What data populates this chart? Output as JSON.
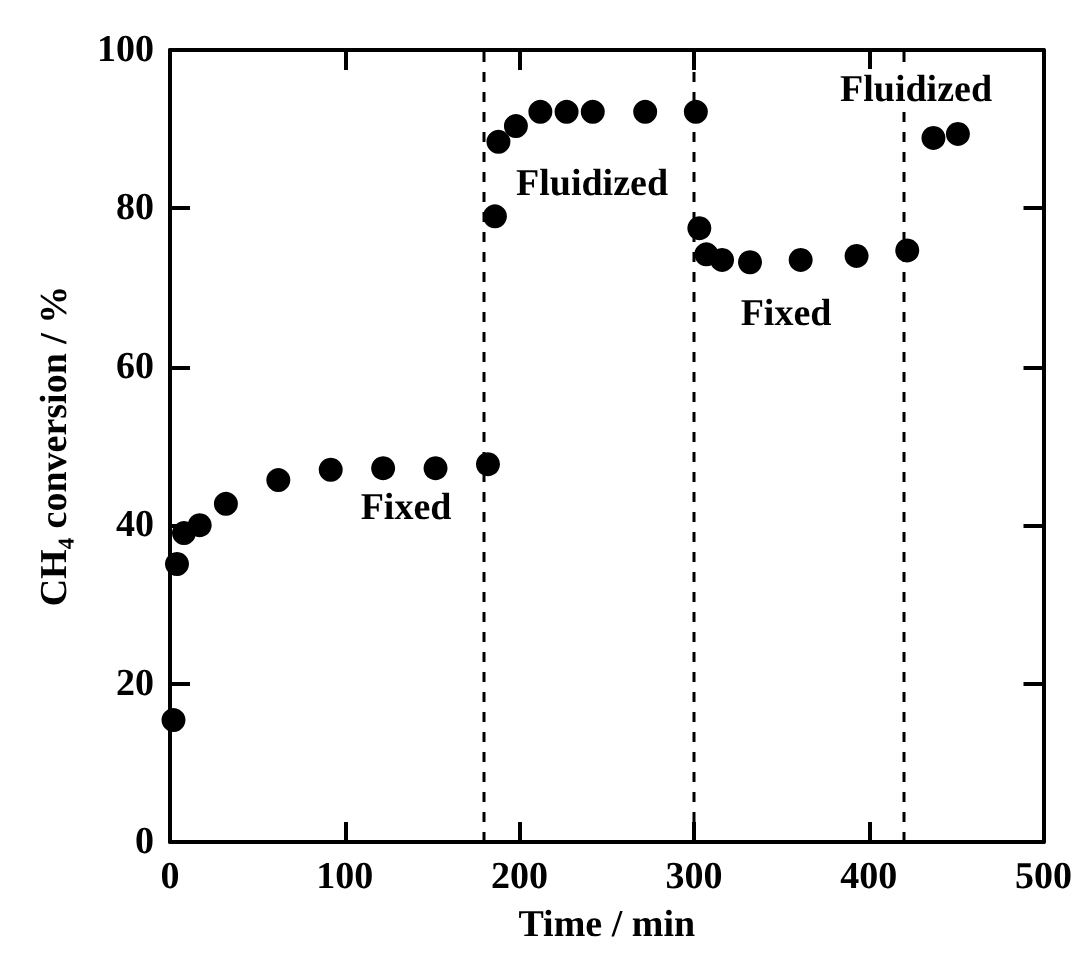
{
  "chart_data": {
    "type": "scatter",
    "xlabel": "Time / min",
    "ylabel": "CH₄ conversion / %",
    "x": [
      2,
      4,
      8,
      17,
      32,
      62,
      92,
      122,
      152,
      182,
      186,
      188,
      198,
      212,
      227,
      242,
      272,
      301,
      303,
      307,
      316,
      332,
      361,
      393,
      422,
      437,
      451
    ],
    "series": [
      {
        "color": "#000000",
        "values": [
          15.4,
          35.1,
          39,
          40,
          42.7,
          45.7,
          47,
          47.2,
          47.2,
          47.7,
          79,
          88.4,
          90.4,
          92.2,
          92.2,
          92.2,
          92.2,
          92.2,
          77.5,
          74.2,
          73.5,
          73.2,
          73.5,
          74,
          74.7,
          88.9,
          89.4
        ]
      }
    ],
    "xlim": [
      0,
      500
    ],
    "xticks": [
      0,
      100,
      200,
      300,
      400,
      500
    ],
    "ylim": [
      0,
      100
    ],
    "yticks": [
      0,
      20,
      40,
      60,
      80,
      100
    ],
    "ref_lines": [
      {
        "axis": "x",
        "value": 180,
        "color": "#000000",
        "line_style": "dashed"
      },
      {
        "axis": "x",
        "value": 300,
        "color": "#000000",
        "line_style": "dashed"
      },
      {
        "axis": "x",
        "value": 420,
        "color": "#000000",
        "line_style": "dashed"
      }
    ],
    "annotations": [
      "Fixed",
      "Fluidized",
      "Fixed",
      "Fluidized"
    ],
    "marker": "circle",
    "grid": false
  }
}
